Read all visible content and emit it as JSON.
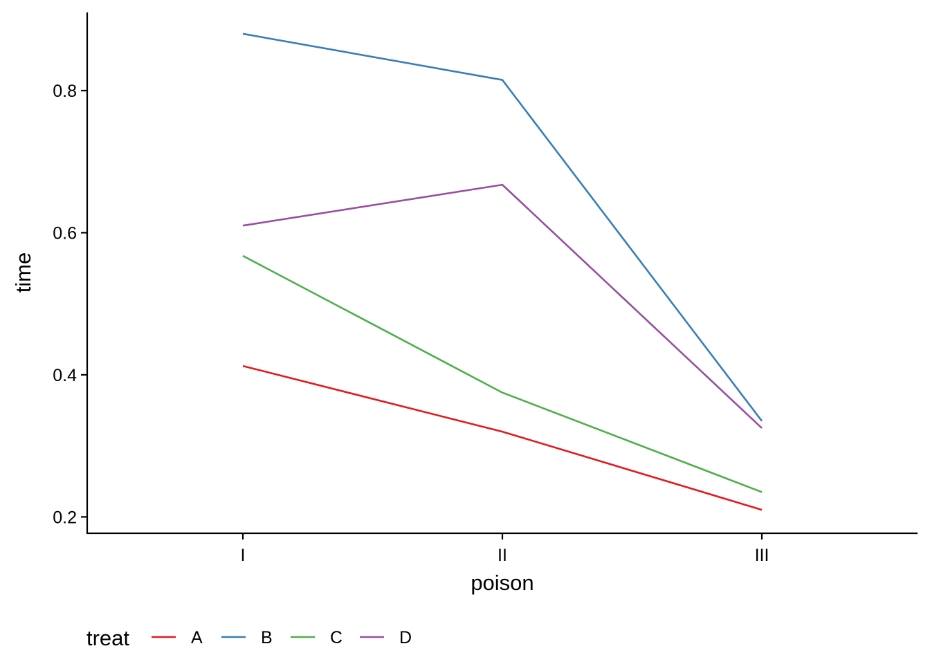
{
  "chart_data": {
    "type": "line",
    "xlabel": "poison",
    "ylabel": "time",
    "categories": [
      "I",
      "II",
      "III"
    ],
    "ylim": [
      0.177,
      0.91
    ],
    "yticks": [
      0.2,
      0.4,
      0.6,
      0.8
    ],
    "ytick_labels": [
      "0.2",
      "0.4",
      "0.6",
      "0.8"
    ],
    "grid": false,
    "legend": {
      "title": "treat",
      "placement": "bottom-left"
    },
    "series": [
      {
        "name": "A",
        "color": "#E41A1C",
        "values": [
          0.4125,
          0.32,
          0.21
        ]
      },
      {
        "name": "B",
        "color": "#377EB8",
        "values": [
          0.88,
          0.815,
          0.335
        ]
      },
      {
        "name": "C",
        "color": "#4DAF4A",
        "values": [
          0.5675,
          0.375,
          0.235
        ]
      },
      {
        "name": "D",
        "color": "#984EA3",
        "values": [
          0.61,
          0.6675,
          0.325
        ]
      }
    ]
  }
}
